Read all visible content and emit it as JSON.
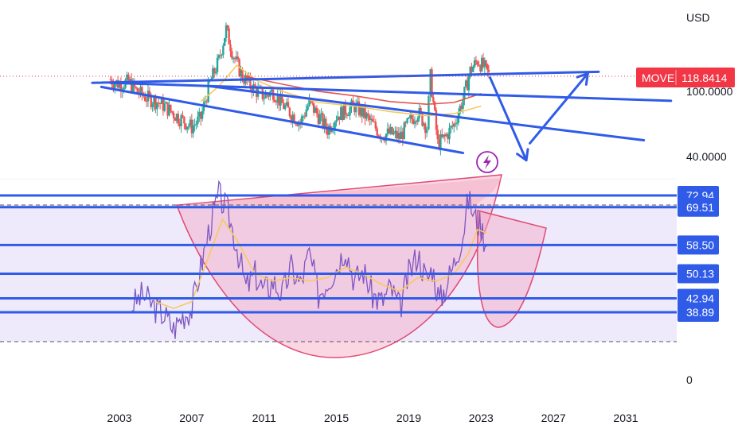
{
  "chart_data": [
    {
      "type": "candlestick",
      "title": "",
      "symbol": "MOVE",
      "last_value": "118.8414",
      "currency_label": "USD",
      "y_scale": "log",
      "y_ticks": [
        "100.0000",
        "40.0000"
      ],
      "x_ticks": [
        "2003",
        "2007",
        "2011",
        "2015",
        "2019",
        "2023",
        "2027",
        "2031"
      ],
      "xlim": [
        2001.2,
        2032.5
      ],
      "ylim": [
        25,
        300
      ],
      "candles_monthly_approx": [
        {
          "year": 2002.5,
          "value": 115
        },
        {
          "year": 2003.0,
          "value": 108
        },
        {
          "year": 2003.5,
          "value": 112
        },
        {
          "year": 2004.0,
          "value": 97
        },
        {
          "year": 2004.5,
          "value": 90
        },
        {
          "year": 2005.0,
          "value": 86
        },
        {
          "year": 2005.5,
          "value": 80
        },
        {
          "year": 2006.0,
          "value": 72
        },
        {
          "year": 2006.5,
          "value": 66
        },
        {
          "year": 2007.0,
          "value": 60
        },
        {
          "year": 2007.5,
          "value": 68
        },
        {
          "year": 2008.0,
          "value": 110
        },
        {
          "year": 2008.5,
          "value": 150
        },
        {
          "year": 2008.9,
          "value": 230
        },
        {
          "year": 2009.3,
          "value": 160
        },
        {
          "year": 2009.8,
          "value": 120
        },
        {
          "year": 2010.5,
          "value": 100
        },
        {
          "year": 2011.0,
          "value": 92
        },
        {
          "year": 2011.5,
          "value": 98
        },
        {
          "year": 2012.0,
          "value": 82
        },
        {
          "year": 2012.5,
          "value": 72
        },
        {
          "year": 2013.0,
          "value": 64
        },
        {
          "year": 2013.5,
          "value": 84
        },
        {
          "year": 2014.0,
          "value": 70
        },
        {
          "year": 2014.5,
          "value": 58
        },
        {
          "year": 2015.0,
          "value": 70
        },
        {
          "year": 2015.5,
          "value": 76
        },
        {
          "year": 2016.0,
          "value": 80
        },
        {
          "year": 2016.5,
          "value": 72
        },
        {
          "year": 2017.0,
          "value": 62
        },
        {
          "year": 2017.5,
          "value": 54
        },
        {
          "year": 2018.0,
          "value": 55
        },
        {
          "year": 2018.5,
          "value": 52
        },
        {
          "year": 2019.0,
          "value": 64
        },
        {
          "year": 2019.5,
          "value": 74
        },
        {
          "year": 2020.0,
          "value": 60
        },
        {
          "year": 2020.2,
          "value": 120
        },
        {
          "year": 2020.6,
          "value": 48
        },
        {
          "year": 2021.0,
          "value": 52
        },
        {
          "year": 2021.5,
          "value": 62
        },
        {
          "year": 2022.0,
          "value": 88
        },
        {
          "year": 2022.4,
          "value": 130
        },
        {
          "year": 2022.8,
          "value": 150
        },
        {
          "year": 2023.2,
          "value": 135
        },
        {
          "year": 2023.5,
          "value": 118.84
        }
      ],
      "moving_averages": [
        {
          "color": "#f7c95c",
          "points": [
            [
              2007.5,
              85
            ],
            [
              2008.5,
              105
            ],
            [
              2009.5,
              140
            ],
            [
              2010.5,
              115
            ],
            [
              2012.0,
              98
            ],
            [
              2014.0,
              84
            ],
            [
              2016.0,
              80
            ],
            [
              2018.0,
              74
            ],
            [
              2020.0,
              70
            ],
            [
              2021.5,
              72
            ],
            [
              2023.0,
              80
            ]
          ]
        },
        {
          "color": "#e5554f",
          "points": [
            [
              2010.0,
              120
            ],
            [
              2012.0,
              108
            ],
            [
              2014.0,
              98
            ],
            [
              2016.0,
              92
            ],
            [
              2018.0,
              85
            ],
            [
              2020.0,
              82
            ],
            [
              2021.5,
              84
            ],
            [
              2023.0,
              95
            ]
          ]
        }
      ],
      "trendlines": [
        {
          "from": [
            2001.5,
            110
          ],
          "to": [
            2029.5,
            128
          ]
        },
        {
          "from": [
            2002.5,
            110
          ],
          "to": [
            2033.5,
            86
          ]
        },
        {
          "from": [
            2002.0,
            104
          ],
          "to": [
            2022.0,
            42
          ]
        },
        {
          "from": [
            2008.0,
            105
          ],
          "to": [
            2032.0,
            50
          ]
        }
      ],
      "arrows": [
        {
          "path": [
            [
              2023.5,
              118
            ],
            [
              2025.5,
              38
            ]
          ]
        },
        {
          "path": [
            [
              2025.7,
              48
            ],
            [
              2028.9,
              125
            ]
          ]
        }
      ]
    },
    {
      "type": "line",
      "title": "",
      "ylim": [
        0,
        85
      ],
      "y_ticks": [
        "0"
      ],
      "levels": [
        "72.94",
        "69.51",
        "58.50",
        "50.13",
        "42.94",
        "38.89"
      ],
      "dashed_levels": [
        70,
        27
      ],
      "series": [
        {
          "name": "",
          "color": "#7e57c2",
          "values_year_value": [
            [
              2003.7,
              41
            ],
            [
              2004.3,
              44
            ],
            [
              2005.0,
              40
            ],
            [
              2005.5,
              38
            ],
            [
              2006.0,
              34
            ],
            [
              2006.5,
              38
            ],
            [
              2007.0,
              40
            ],
            [
              2007.5,
              52
            ],
            [
              2008.0,
              64
            ],
            [
              2008.5,
              73
            ],
            [
              2009.0,
              68
            ],
            [
              2009.5,
              58
            ],
            [
              2010.0,
              46
            ],
            [
              2010.5,
              50
            ],
            [
              2011.0,
              45
            ],
            [
              2011.5,
              48
            ],
            [
              2012.0,
              44
            ],
            [
              2012.5,
              52
            ],
            [
              2013.0,
              47
            ],
            [
              2013.5,
              56
            ],
            [
              2014.0,
              44
            ],
            [
              2014.5,
              48
            ],
            [
              2015.0,
              52
            ],
            [
              2015.5,
              58
            ],
            [
              2016.0,
              48
            ],
            [
              2016.5,
              51
            ],
            [
              2017.0,
              44
            ],
            [
              2017.5,
              42
            ],
            [
              2018.0,
              46
            ],
            [
              2018.5,
              40
            ],
            [
              2019.0,
              50
            ],
            [
              2019.5,
              56
            ],
            [
              2020.0,
              48
            ],
            [
              2020.3,
              52
            ],
            [
              2020.7,
              42
            ],
            [
              2021.0,
              46
            ],
            [
              2021.5,
              53
            ],
            [
              2022.0,
              62
            ],
            [
              2022.3,
              72
            ],
            [
              2022.7,
              66
            ],
            [
              2023.0,
              64
            ],
            [
              2023.3,
              58
            ]
          ]
        },
        {
          "name": "",
          "color": "#f7c95c",
          "values_year_value": [
            [
              2005.0,
              42
            ],
            [
              2006.0,
              40
            ],
            [
              2007.0,
              42
            ],
            [
              2008.0,
              56
            ],
            [
              2008.7,
              66
            ],
            [
              2009.5,
              60
            ],
            [
              2010.5,
              50
            ],
            [
              2011.5,
              48
            ],
            [
              2012.5,
              49
            ],
            [
              2013.5,
              48
            ],
            [
              2014.5,
              49
            ],
            [
              2015.5,
              52
            ],
            [
              2016.5,
              50
            ],
            [
              2017.5,
              47
            ],
            [
              2018.5,
              45
            ],
            [
              2019.5,
              49
            ],
            [
              2020.5,
              48
            ],
            [
              2021.5,
              50
            ],
            [
              2022.3,
              56
            ],
            [
              2022.8,
              63
            ],
            [
              2023.3,
              62
            ]
          ]
        }
      ],
      "shapes": [
        {
          "kind": "cup",
          "color": "#f3a6c0"
        },
        {
          "kind": "handle",
          "color": "#f3a6c0"
        }
      ]
    }
  ],
  "ui": {
    "currency_label": "USD",
    "symbol_tag": "MOVE",
    "last_value": "118.8414",
    "price_tick_100": "100.0000",
    "price_tick_40": "40.0000",
    "rsi_zero": "0",
    "colors": {
      "trendline": "#2f5be8",
      "level_tag": "#2f5be8",
      "symbol_tag": "#f23645",
      "candle_up": "#26a69a",
      "candle_down": "#ef5350",
      "rsi_line": "#7e57c2",
      "ma_fast": "#f7c95c",
      "ma_slow": "#e5554f",
      "cup_fill": "#f3a6c0",
      "cup_stroke": "#e04b73",
      "band_fill": "#ece8fb",
      "lightning_icon": "#9c27b0"
    }
  }
}
